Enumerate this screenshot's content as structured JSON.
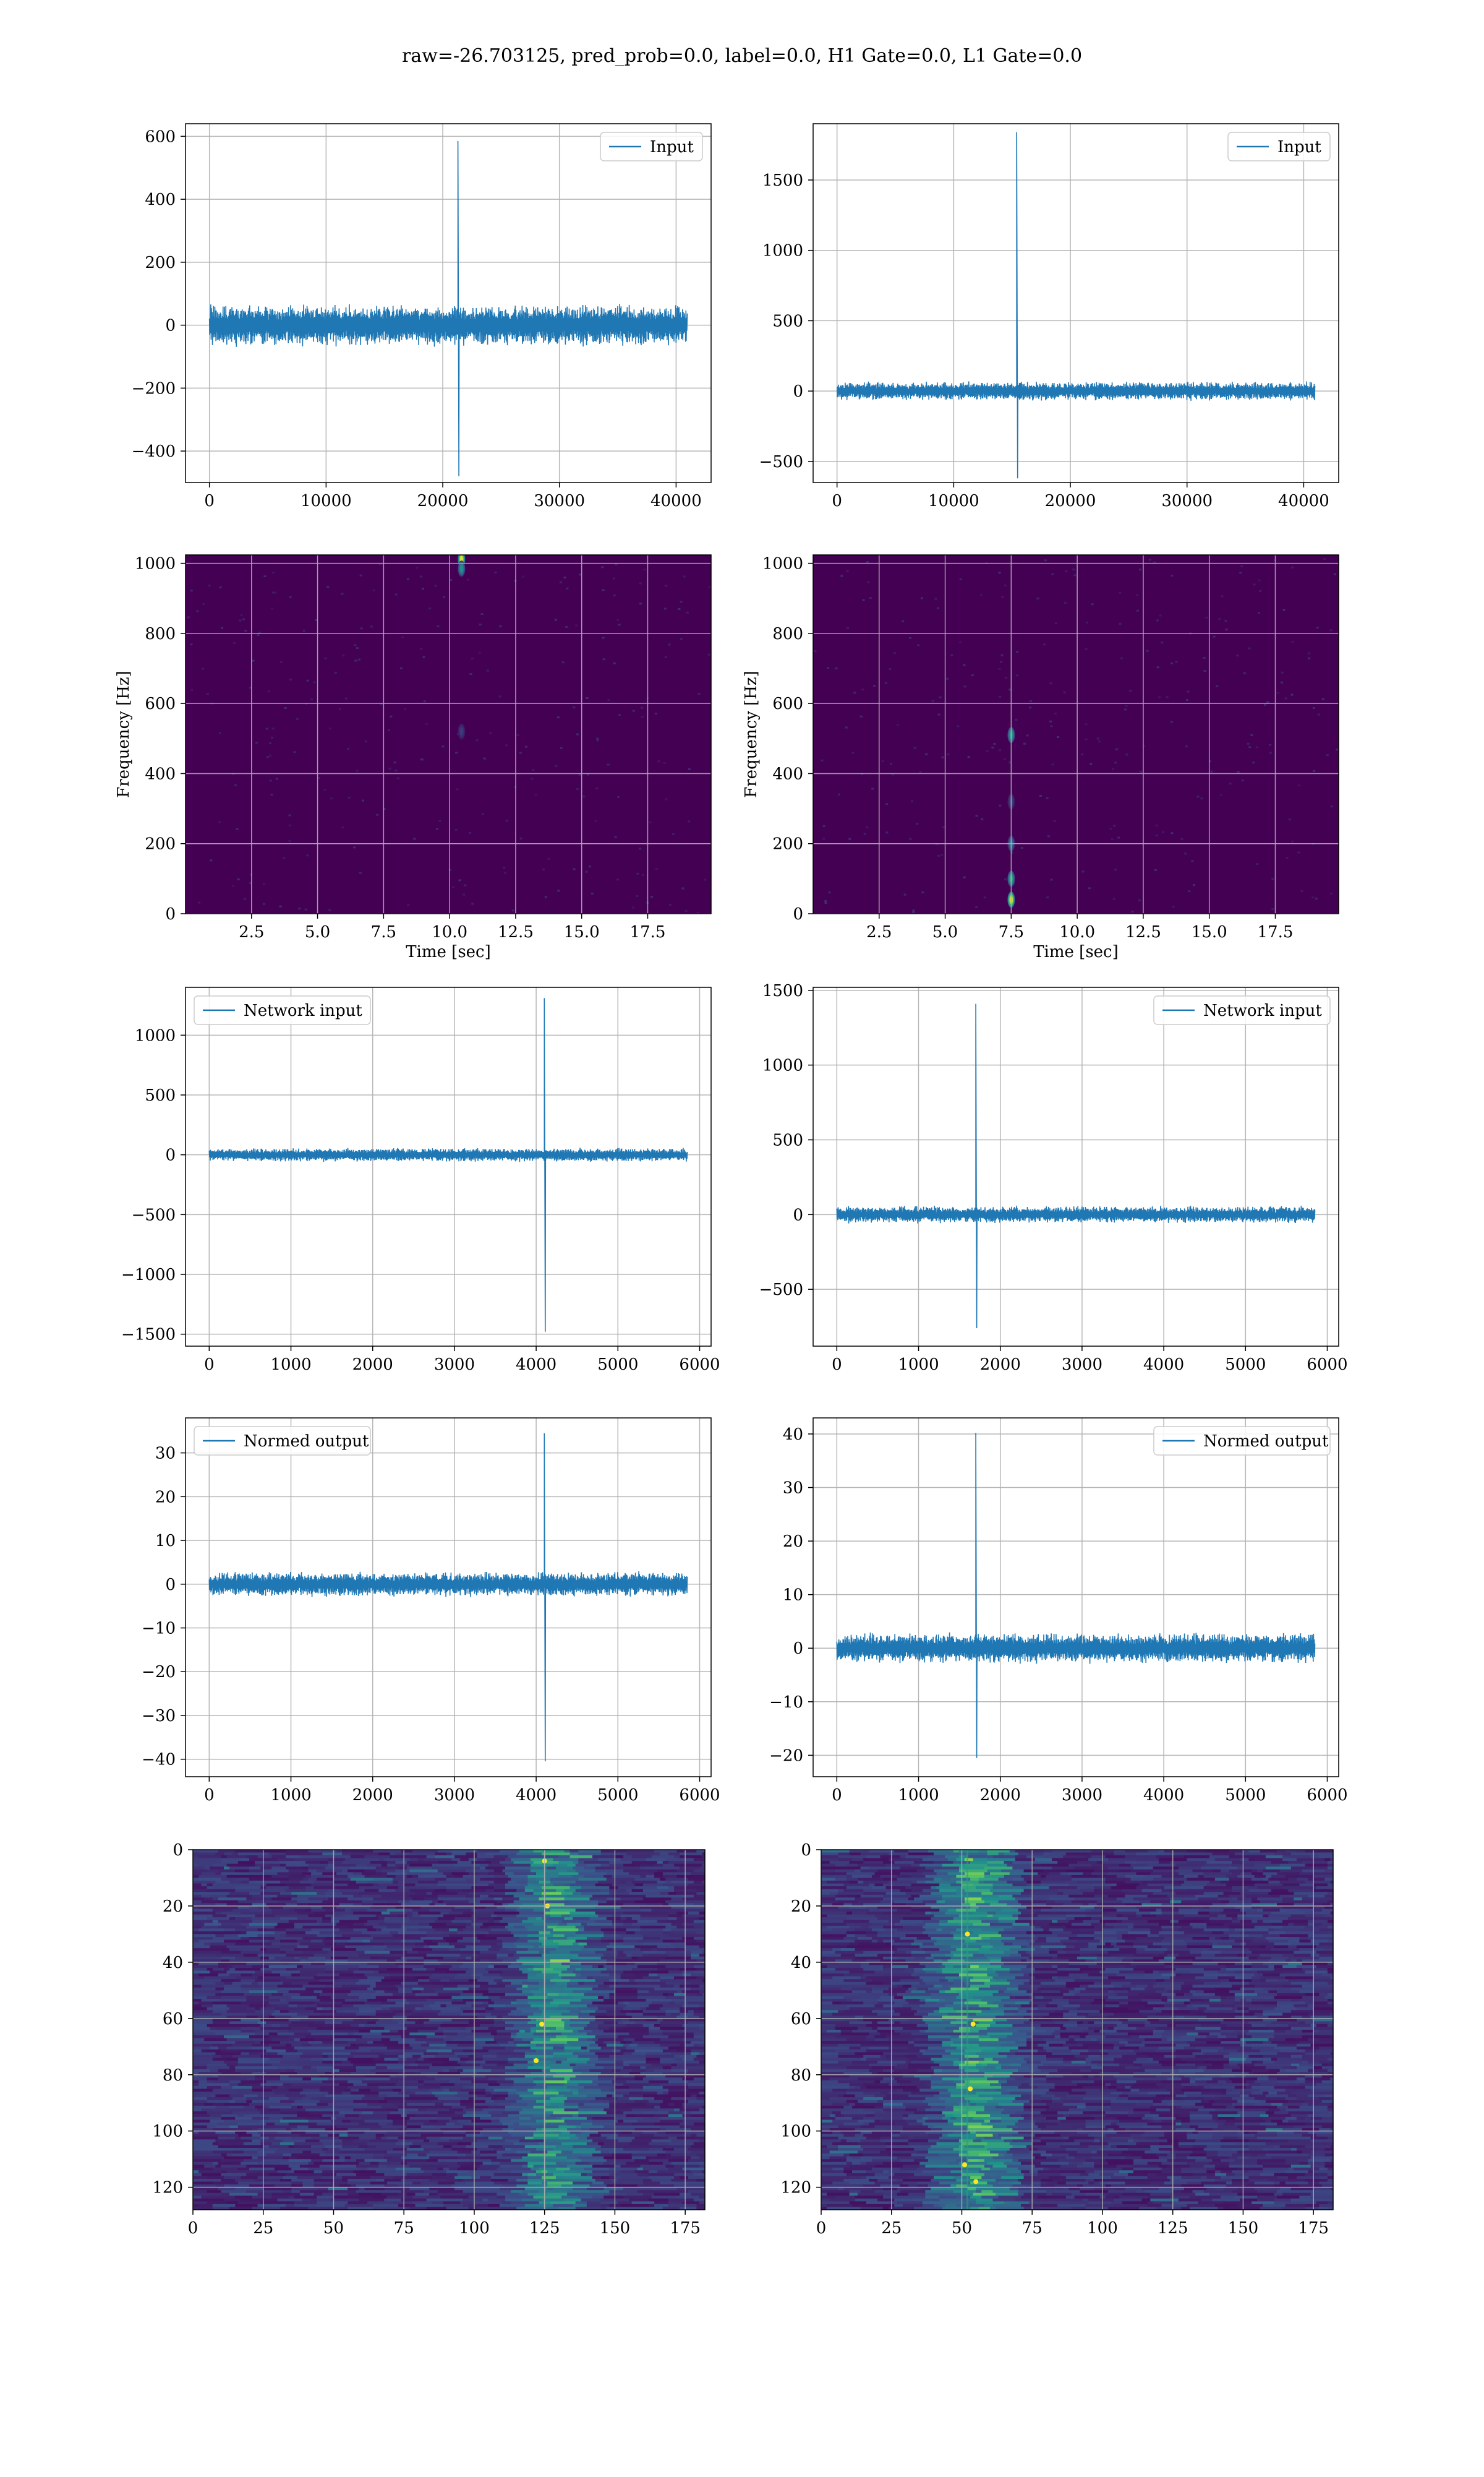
{
  "figure": {
    "title": "raw=-26.703125, pred_prob=0.0, label=0.0, H1 Gate=0.0, L1 Gate=0.0"
  },
  "colors": {
    "line": "#1f77b4",
    "grid": "#b0b0b0",
    "axes": "#000000",
    "heatmap_bg": "#440154",
    "viridis": [
      "#440154",
      "#3b528b",
      "#21918c",
      "#5ec962",
      "#fde725"
    ]
  },
  "chart_data": [
    {
      "id": "r1c1",
      "type": "line",
      "title": "",
      "xlabel": "",
      "ylabel": "",
      "xlim": [
        -2050,
        43000
      ],
      "ylim": [
        -500,
        640
      ],
      "xticks": [
        0,
        10000,
        20000,
        30000,
        40000
      ],
      "xtick_labels": [
        "0",
        "10000",
        "20000",
        "30000",
        "40000"
      ],
      "yticks": [
        -400,
        -200,
        0,
        200,
        400,
        600
      ],
      "ytick_labels": [
        "−400",
        "−200",
        "0",
        "200",
        "400",
        "600"
      ],
      "grid": true,
      "legend": "top-right",
      "series": [
        {
          "name": "Input",
          "x_range": [
            0,
            40959
          ],
          "noise_amplitude": 70,
          "spike_at": 21300,
          "spike_peak": 585,
          "spike_trough": -480,
          "baseline": 0
        }
      ]
    },
    {
      "id": "r1c2",
      "type": "line",
      "title": "",
      "xlabel": "",
      "ylabel": "",
      "xlim": [
        -2050,
        43000
      ],
      "ylim": [
        -650,
        1900
      ],
      "xticks": [
        0,
        10000,
        20000,
        30000,
        40000
      ],
      "xtick_labels": [
        "0",
        "10000",
        "20000",
        "30000",
        "40000"
      ],
      "yticks": [
        -500,
        0,
        500,
        1000,
        1500
      ],
      "ytick_labels": [
        "−500",
        "0",
        "500",
        "1000",
        "1500"
      ],
      "grid": true,
      "legend": "top-right",
      "series": [
        {
          "name": "Input",
          "x_range": [
            0,
            40959
          ],
          "noise_amplitude": 70,
          "spike_at": 15400,
          "spike_peak": 1840,
          "spike_trough": -620,
          "baseline": 0
        }
      ]
    },
    {
      "id": "r2c1",
      "type": "heatmap",
      "title": "",
      "xlabel": "Time [sec]",
      "ylabel": "Frequency [Hz]",
      "xlim": [
        0,
        19.9
      ],
      "ylim": [
        0,
        1024
      ],
      "xticks": [
        2.5,
        5.0,
        7.5,
        10.0,
        12.5,
        15.0,
        17.5
      ],
      "xtick_labels": [
        "2.5",
        "5.0",
        "7.5",
        "10.0",
        "12.5",
        "15.0",
        "17.5"
      ],
      "yticks": [
        0,
        200,
        400,
        600,
        800,
        1000
      ],
      "ytick_labels": [
        "0",
        "200",
        "400",
        "600",
        "800",
        "1000"
      ],
      "grid": true,
      "hotspots": [
        {
          "time": 10.45,
          "freq": 1012,
          "strength": 0.95
        },
        {
          "time": 10.45,
          "freq": 985,
          "strength": 0.5
        },
        {
          "time": 10.45,
          "freq": 520,
          "strength": 0.18
        }
      ]
    },
    {
      "id": "r2c2",
      "type": "heatmap",
      "title": "",
      "xlabel": "Time [sec]",
      "ylabel": "Frequency [Hz]",
      "xlim": [
        0,
        19.9
      ],
      "ylim": [
        0,
        1024
      ],
      "xticks": [
        2.5,
        5.0,
        7.5,
        10.0,
        12.5,
        15.0,
        17.5
      ],
      "xtick_labels": [
        "2.5",
        "5.0",
        "7.5",
        "10.0",
        "12.5",
        "15.0",
        "17.5"
      ],
      "yticks": [
        0,
        200,
        400,
        600,
        800,
        1000
      ],
      "ytick_labels": [
        "0",
        "200",
        "400",
        "600",
        "800",
        "1000"
      ],
      "grid": true,
      "hotspots": [
        {
          "time": 7.5,
          "freq": 40,
          "strength": 0.95
        },
        {
          "time": 7.5,
          "freq": 100,
          "strength": 0.6
        },
        {
          "time": 7.5,
          "freq": 200,
          "strength": 0.35
        },
        {
          "time": 7.5,
          "freq": 510,
          "strength": 0.55
        },
        {
          "time": 7.5,
          "freq": 320,
          "strength": 0.2
        }
      ]
    },
    {
      "id": "r3c1",
      "type": "line",
      "title": "",
      "xlabel": "",
      "ylabel": "",
      "xlim": [
        -290,
        6140
      ],
      "ylim": [
        -1600,
        1400
      ],
      "xticks": [
        0,
        1000,
        2000,
        3000,
        4000,
        5000,
        6000
      ],
      "xtick_labels": [
        "0",
        "1000",
        "2000",
        "3000",
        "4000",
        "5000",
        "6000"
      ],
      "yticks": [
        -1500,
        -1000,
        -500,
        0,
        500,
        1000
      ],
      "ytick_labels": [
        "−1500",
        "−1000",
        "−500",
        "0",
        "500",
        "1000"
      ],
      "grid": true,
      "legend": "top-left",
      "series": [
        {
          "name": "Network input",
          "x_range": [
            0,
            5849
          ],
          "noise_amplitude": 60,
          "spike_at": 4100,
          "spike_peak": 1310,
          "spike_trough": -1480,
          "baseline": 0
        }
      ]
    },
    {
      "id": "r3c2",
      "type": "line",
      "title": "",
      "xlabel": "",
      "ylabel": "",
      "xlim": [
        -290,
        6140
      ],
      "ylim": [
        -880,
        1520
      ],
      "xticks": [
        0,
        1000,
        2000,
        3000,
        4000,
        5000,
        6000
      ],
      "xtick_labels": [
        "0",
        "1000",
        "2000",
        "3000",
        "4000",
        "5000",
        "6000"
      ],
      "yticks": [
        -500,
        0,
        500,
        1000,
        1500
      ],
      "ytick_labels": [
        "−500",
        "0",
        "500",
        "1000",
        "1500"
      ],
      "grid": true,
      "legend": "top-right",
      "series": [
        {
          "name": "Network input",
          "x_range": [
            0,
            5849
          ],
          "noise_amplitude": 60,
          "spike_at": 1700,
          "spike_peak": 1410,
          "spike_trough": -760,
          "baseline": 0
        }
      ]
    },
    {
      "id": "r4c1",
      "type": "line",
      "title": "",
      "xlabel": "",
      "ylabel": "",
      "xlim": [
        -290,
        6140
      ],
      "ylim": [
        -44,
        38
      ],
      "xticks": [
        0,
        1000,
        2000,
        3000,
        4000,
        5000,
        6000
      ],
      "xtick_labels": [
        "0",
        "1000",
        "2000",
        "3000",
        "4000",
        "5000",
        "6000"
      ],
      "yticks": [
        -40,
        -30,
        -20,
        -10,
        0,
        10,
        20,
        30
      ],
      "ytick_labels": [
        "−40",
        "−30",
        "−20",
        "−10",
        "0",
        "10",
        "20",
        "30"
      ],
      "grid": true,
      "legend": "top-left",
      "series": [
        {
          "name": "Normed output",
          "x_range": [
            0,
            5849
          ],
          "noise_amplitude": 3,
          "spike_at": 4100,
          "spike_peak": 34.5,
          "spike_trough": -40.5,
          "baseline": 0
        }
      ]
    },
    {
      "id": "r4c2",
      "type": "line",
      "title": "",
      "xlabel": "",
      "ylabel": "",
      "xlim": [
        -290,
        6140
      ],
      "ylim": [
        -24,
        43
      ],
      "xticks": [
        0,
        1000,
        2000,
        3000,
        4000,
        5000,
        6000
      ],
      "xtick_labels": [
        "0",
        "1000",
        "2000",
        "3000",
        "4000",
        "5000",
        "6000"
      ],
      "yticks": [
        -20,
        -10,
        0,
        10,
        20,
        30,
        40
      ],
      "ytick_labels": [
        "−20",
        "−10",
        "0",
        "10",
        "20",
        "30",
        "40"
      ],
      "grid": true,
      "legend": "top-right",
      "series": [
        {
          "name": "Normed output",
          "x_range": [
            0,
            5849
          ],
          "noise_amplitude": 3,
          "spike_at": 1700,
          "spike_peak": 40.2,
          "spike_trough": -20.5,
          "baseline": 0
        }
      ]
    },
    {
      "id": "r5c1",
      "type": "heatmap",
      "title": "",
      "xlabel": "",
      "ylabel": "",
      "xlim": [
        0,
        182
      ],
      "ylim": [
        128,
        0
      ],
      "xticks": [
        0,
        25,
        50,
        75,
        100,
        125,
        150,
        175
      ],
      "xtick_labels": [
        "0",
        "25",
        "50",
        "75",
        "100",
        "125",
        "150",
        "175"
      ],
      "yticks": [
        0,
        20,
        40,
        60,
        80,
        100,
        120
      ],
      "ytick_labels": [
        "0",
        "20",
        "40",
        "60",
        "80",
        "100",
        "120"
      ],
      "grid": true,
      "band_center": 125,
      "band_width": 18,
      "band_strength": 0.55,
      "hot_points": [
        [
          124,
          62
        ],
        [
          122,
          75
        ],
        [
          125,
          4
        ],
        [
          126,
          20
        ]
      ]
    },
    {
      "id": "r5c2",
      "type": "heatmap",
      "title": "",
      "xlabel": "",
      "ylabel": "",
      "xlim": [
        0,
        182
      ],
      "ylim": [
        128,
        0
      ],
      "xticks": [
        0,
        25,
        50,
        75,
        100,
        125,
        150,
        175
      ],
      "xtick_labels": [
        "0",
        "25",
        "50",
        "75",
        "100",
        "125",
        "150",
        "175"
      ],
      "yticks": [
        0,
        20,
        40,
        60,
        80,
        100,
        120
      ],
      "ytick_labels": [
        "0",
        "20",
        "40",
        "60",
        "80",
        "100",
        "120"
      ],
      "grid": true,
      "band_center": 52,
      "band_width": 20,
      "band_strength": 0.6,
      "hot_points": [
        [
          54,
          62
        ],
        [
          53,
          85
        ],
        [
          51,
          112
        ],
        [
          55,
          118
        ],
        [
          52,
          30
        ]
      ]
    }
  ]
}
